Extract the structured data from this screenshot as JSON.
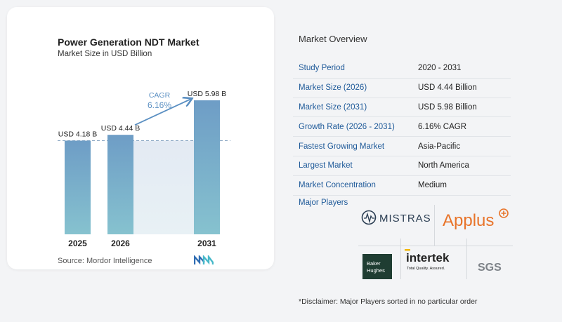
{
  "chart_data": {
    "type": "bar",
    "title": "Power Generation NDT Market",
    "subtitle": "Market Size in USD Billion",
    "categories": [
      "2025",
      "2026",
      "2031"
    ],
    "values": [
      4.18,
      4.44,
      5.98
    ],
    "value_labels": [
      "USD 4.18 B",
      "USD 4.44 B",
      "USD 5.98 B"
    ],
    "cagr_label": "CAGR",
    "cagr_value": "6.16%",
    "bar_color": "#6e9dc6",
    "bar_color_bottom": "#86c2cf",
    "reference_line": "dashed at 2025 level",
    "ylim": [
      0,
      6.2
    ]
  },
  "source": "Source:  Mordor Intelligence",
  "overview": {
    "title": "Market Overview",
    "rows": [
      {
        "label": "Study Period",
        "value": "2020 - 2031"
      },
      {
        "label": "Market Size (2026)",
        "value": "USD 4.44 Billion"
      },
      {
        "label": "Market Size (2031)",
        "value": "USD 5.98 Billion"
      },
      {
        "label": "Growth Rate (2026 - 2031)",
        "value": "6.16% CAGR"
      },
      {
        "label": "Fastest Growing Market",
        "value": "Asia-Pacific"
      },
      {
        "label": "Largest Market",
        "value": "North America"
      },
      {
        "label": "Market Concentration",
        "value": "Medium"
      }
    ]
  },
  "players": {
    "title": "Major Players",
    "logos": {
      "mistras": "MISTRAS",
      "applus": "Applus",
      "baker_1": "Baker",
      "baker_2": "Hughes",
      "intertek": "intertek",
      "intertek_tag": "Total Quality. Assured.",
      "sgs": "SGS"
    }
  },
  "disclaimer": "*Disclaimer: Major Players sorted in no particular order",
  "colors": {
    "accent_blue": "#1f5a99",
    "applus_orange": "#e8742a",
    "baker_green": "#1f3d32",
    "intertek_gold": "#f2b705"
  }
}
